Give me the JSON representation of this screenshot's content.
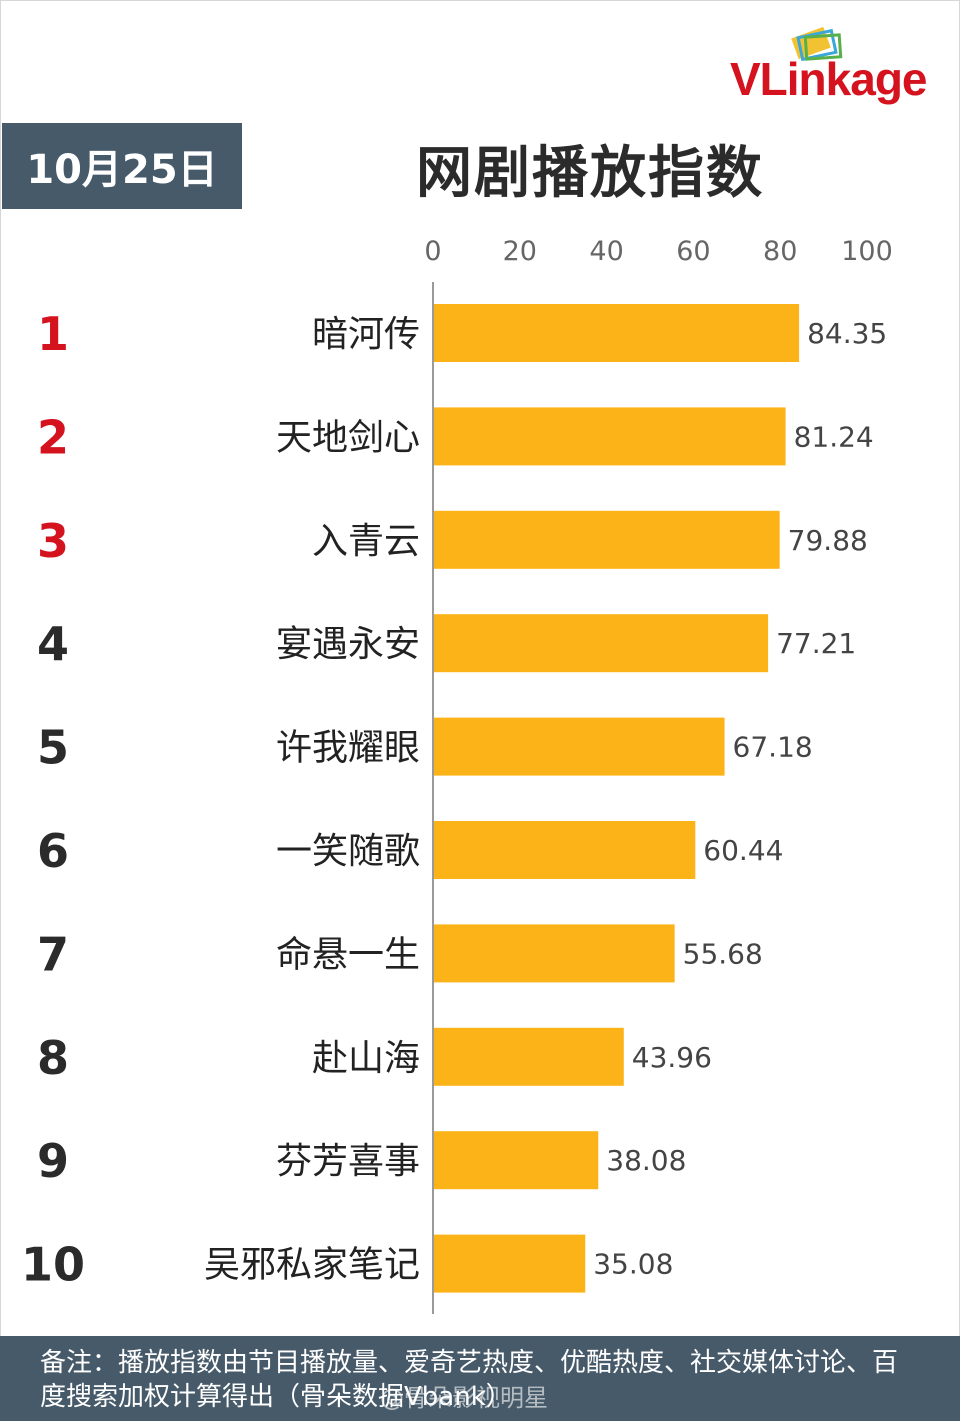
{
  "header": {
    "date": "10月25日",
    "title": "网剧播放指数",
    "brand": "VLinkage"
  },
  "chart_data": {
    "type": "bar",
    "orientation": "horizontal",
    "title": "网剧播放指数",
    "ranks": [
      "1",
      "2",
      "3",
      "4",
      "5",
      "6",
      "7",
      "8",
      "9",
      "10"
    ],
    "categories": [
      "暗河传",
      "天地剑心",
      "入青云",
      "宴遇永安",
      "许我耀眼",
      "一笑随歌",
      "命悬一生",
      "赴山海",
      "芬芳喜事",
      "吴邪私家笔记"
    ],
    "values": [
      84.35,
      81.24,
      79.88,
      77.21,
      67.18,
      60.44,
      55.68,
      43.96,
      38.08,
      35.08
    ],
    "value_labels": [
      "84.35",
      "81.24",
      "79.88",
      "77.21",
      "67.18",
      "60.44",
      "55.68",
      "43.96",
      "38.08",
      "35.08"
    ],
    "xlim": [
      0,
      100
    ],
    "x_ticks": [
      "0",
      "20",
      "40",
      "60",
      "80",
      "100"
    ],
    "x_tick_values": [
      0,
      20,
      40,
      60,
      80,
      100
    ],
    "tick_position": "top",
    "grid": false,
    "bar_color": "#fbb317",
    "top_rank_color": "#d4131e",
    "rank_color": "#2b2b2b"
  },
  "footer": {
    "note": "备注：播放指数由节目播放量、爱奇艺热度、优酷热度、社交媒体讨论、百度搜索加权计算得出（骨朵数据Vbank）",
    "watermark": "@骨朵影视明星"
  }
}
